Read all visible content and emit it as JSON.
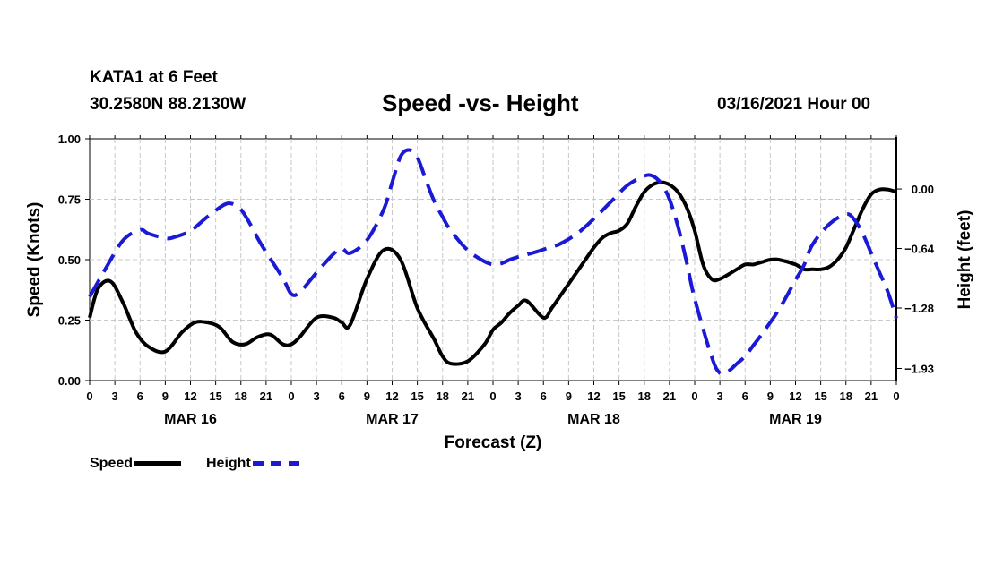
{
  "header": {
    "station": "KATA1 at 6 Feet",
    "coords": "30.2580N 88.2130W",
    "title": "Speed -vs- Height",
    "timestamp": "03/16/2021 Hour 00"
  },
  "colors": {
    "speed": "#000000",
    "height": "#1a1ad6",
    "grid": "#c8c8c8"
  },
  "chart_data": {
    "type": "line",
    "title": "Speed -vs- Height",
    "xlabel": "Forecast (Z)",
    "ylabel": "Speed (Knots)",
    "y2label": "Height (feet)",
    "xlim": [
      0,
      96
    ],
    "ylim": [
      0,
      1.0
    ],
    "y2lim": [
      -2.06,
      0.54
    ],
    "grid": true,
    "x_ticks": [
      0,
      3,
      6,
      9,
      12,
      15,
      18,
      21,
      24,
      27,
      30,
      33,
      36,
      39,
      42,
      45,
      48,
      51,
      54,
      57,
      60,
      63,
      66,
      69,
      72,
      75,
      78,
      81,
      84,
      87,
      90,
      93,
      96
    ],
    "x_tick_labels": [
      "0",
      "3",
      "6",
      "9",
      "12",
      "15",
      "18",
      "21",
      "0",
      "3",
      "6",
      "9",
      "12",
      "15",
      "18",
      "21",
      "0",
      "3",
      "6",
      "9",
      "12",
      "15",
      "18",
      "21",
      "0",
      "3",
      "6",
      "9",
      "12",
      "15",
      "18",
      "21",
      "0"
    ],
    "y_ticks": [
      0.0,
      0.25,
      0.5,
      0.75,
      1.0
    ],
    "y_tick_labels": [
      "0.00",
      "0.25",
      "0.50",
      "0.75",
      "1.00"
    ],
    "y2_ticks": [
      0.0,
      -0.64,
      -1.28,
      -1.93
    ],
    "y2_tick_labels": [
      "0.00",
      "−0.64",
      "−1.28",
      "−1.93"
    ],
    "day_labels": [
      {
        "label": "MAR 16",
        "x": 12
      },
      {
        "label": "MAR 17",
        "x": 36
      },
      {
        "label": "MAR 18",
        "x": 60
      },
      {
        "label": "MAR 19",
        "x": 84
      }
    ],
    "series": [
      {
        "name": "Speed",
        "axis": "left",
        "style": "solid",
        "x": [
          0,
          1,
          2.5,
          4,
          5.5,
          7,
          9,
          11,
          12.5,
          14,
          15.5,
          17,
          18.5,
          20,
          21.5,
          23,
          24,
          25,
          27,
          29,
          30,
          31,
          33,
          35,
          37,
          39,
          41,
          42,
          43,
          45,
          47,
          48,
          49,
          50,
          51,
          52,
          54,
          55,
          56,
          58,
          59,
          60,
          61,
          62,
          63,
          64,
          65,
          66,
          67,
          68,
          69,
          70,
          71,
          72,
          73,
          74,
          75,
          77,
          78,
          79,
          80,
          81,
          82,
          84,
          85,
          86,
          87,
          88,
          89,
          90,
          91,
          92,
          93,
          94,
          95,
          96
        ],
        "y": [
          0.26,
          0.38,
          0.41,
          0.32,
          0.2,
          0.14,
          0.12,
          0.2,
          0.24,
          0.24,
          0.22,
          0.16,
          0.15,
          0.18,
          0.19,
          0.15,
          0.15,
          0.18,
          0.26,
          0.26,
          0.24,
          0.23,
          0.42,
          0.54,
          0.5,
          0.3,
          0.17,
          0.1,
          0.07,
          0.08,
          0.15,
          0.21,
          0.24,
          0.28,
          0.31,
          0.33,
          0.26,
          0.3,
          0.35,
          0.45,
          0.5,
          0.55,
          0.59,
          0.61,
          0.62,
          0.65,
          0.72,
          0.78,
          0.81,
          0.82,
          0.81,
          0.78,
          0.72,
          0.62,
          0.48,
          0.42,
          0.42,
          0.46,
          0.48,
          0.48,
          0.49,
          0.5,
          0.5,
          0.48,
          0.46,
          0.46,
          0.46,
          0.47,
          0.5,
          0.55,
          0.63,
          0.71,
          0.77,
          0.79,
          0.79,
          0.78
        ]
      },
      {
        "name": "Height",
        "axis": "right",
        "style": "dashed",
        "x": [
          0,
          2,
          4,
          6,
          7,
          9,
          10,
          12,
          14,
          16,
          17,
          18,
          19,
          20,
          21,
          23,
          24,
          25,
          27,
          29,
          30,
          31,
          33,
          35,
          36,
          37,
          38,
          39,
          40,
          41,
          42,
          43,
          45,
          47,
          48,
          49,
          50,
          51,
          53,
          55,
          56,
          58,
          60,
          62,
          64,
          66,
          67,
          68,
          69,
          70,
          71,
          72,
          74,
          75,
          76,
          77,
          78,
          79,
          80,
          82,
          84,
          85,
          86,
          88,
          90,
          91,
          92,
          93,
          94,
          95,
          96
        ],
        "y": [
          -1.16,
          -0.84,
          -0.55,
          -0.44,
          -0.48,
          -0.53,
          -0.52,
          -0.45,
          -0.3,
          -0.17,
          -0.16,
          -0.22,
          -0.36,
          -0.53,
          -0.68,
          -0.96,
          -1.13,
          -1.11,
          -0.9,
          -0.7,
          -0.64,
          -0.69,
          -0.55,
          -0.22,
          0.07,
          0.35,
          0.42,
          0.34,
          0.1,
          -0.13,
          -0.3,
          -0.45,
          -0.66,
          -0.78,
          -0.81,
          -0.8,
          -0.76,
          -0.73,
          -0.68,
          -0.62,
          -0.59,
          -0.48,
          -0.32,
          -0.14,
          0.04,
          0.14,
          0.14,
          0.06,
          -0.11,
          -0.4,
          -0.77,
          -1.18,
          -1.8,
          -1.98,
          -1.96,
          -1.88,
          -1.8,
          -1.68,
          -1.56,
          -1.3,
          -0.98,
          -0.82,
          -0.6,
          -0.38,
          -0.27,
          -0.33,
          -0.48,
          -0.69,
          -0.9,
          -1.11,
          -1.39
        ]
      }
    ]
  },
  "legend": {
    "speed_label": "Speed",
    "height_label": "Height"
  }
}
